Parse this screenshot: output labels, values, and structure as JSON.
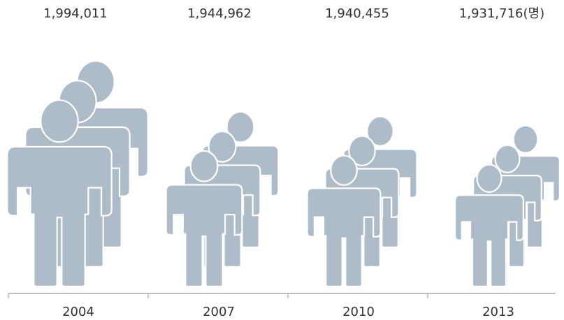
{
  "chart_data": {
    "type": "bar",
    "categories": [
      "2004",
      "2007",
      "2010",
      "2013"
    ],
    "values": [
      1994011,
      1944962,
      1940455,
      1931716
    ],
    "value_labels": [
      "1,994,011",
      "1,944,962",
      "1,940,455",
      "1,931,716(명)"
    ],
    "title": "",
    "xlabel": "",
    "ylabel": "",
    "grid": false,
    "colors": {
      "figure": "#AEBBC8",
      "axis": "#A9A9A9",
      "text": "#333333"
    }
  }
}
